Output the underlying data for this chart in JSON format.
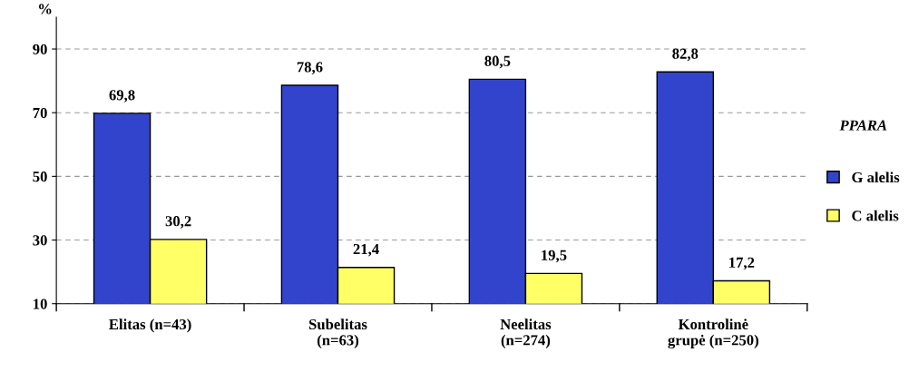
{
  "chart_data": {
    "type": "bar",
    "ylabel": "%",
    "legend_title": "PPARA",
    "categories": [
      "Elitas (n=43)",
      "Subelitas\n(n=63)",
      "Neelitas\n(n=274)",
      "Kontrolinė\ngrupė (n=250)"
    ],
    "series": [
      {
        "name": "G alelis",
        "color": "#3344cc",
        "values": [
          69.8,
          78.6,
          80.5,
          82.8
        ],
        "value_labels": [
          "69,8",
          "78,6",
          "80,5",
          "82,8"
        ]
      },
      {
        "name": "C alelis",
        "color": "#ffff66",
        "values": [
          30.2,
          21.4,
          19.5,
          17.2
        ],
        "value_labels": [
          "30,2",
          "21,4",
          "19,5",
          "17,2"
        ]
      }
    ],
    "ylim": [
      10,
      100
    ],
    "yticks": [
      10,
      30,
      50,
      70,
      90
    ],
    "grid": "y",
    "legend": "right"
  }
}
